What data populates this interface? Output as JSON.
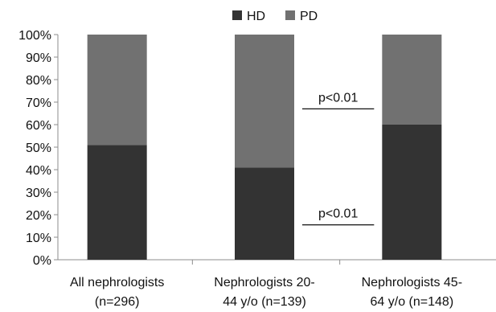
{
  "chart_data": {
    "type": "bar",
    "stacked": true,
    "categories": [
      [
        "All nephrologists",
        "(n=296)"
      ],
      [
        "Nephrologists 20-",
        "44 y/o (n=139)"
      ],
      [
        "Nephrologists 45-",
        "64 y/o (n=148)"
      ]
    ],
    "series": [
      {
        "name": "HD",
        "values": [
          51,
          41,
          60
        ]
      },
      {
        "name": "PD",
        "values": [
          49,
          59,
          40
        ]
      }
    ],
    "ylim": [
      0,
      100
    ],
    "yticks": [
      "0%",
      "10%",
      "20%",
      "30%",
      "40%",
      "50%",
      "60%",
      "70%",
      "80%",
      "90%",
      "100%"
    ],
    "legend": "top-center",
    "colors": {
      "HD": "#333333",
      "PD": "#717171"
    },
    "annotations": [
      {
        "text": "p<0.01",
        "between": [
          1,
          2
        ],
        "level": 67
      },
      {
        "text": "p<0.01",
        "between": [
          1,
          2
        ],
        "level": 15.5
      }
    ]
  }
}
